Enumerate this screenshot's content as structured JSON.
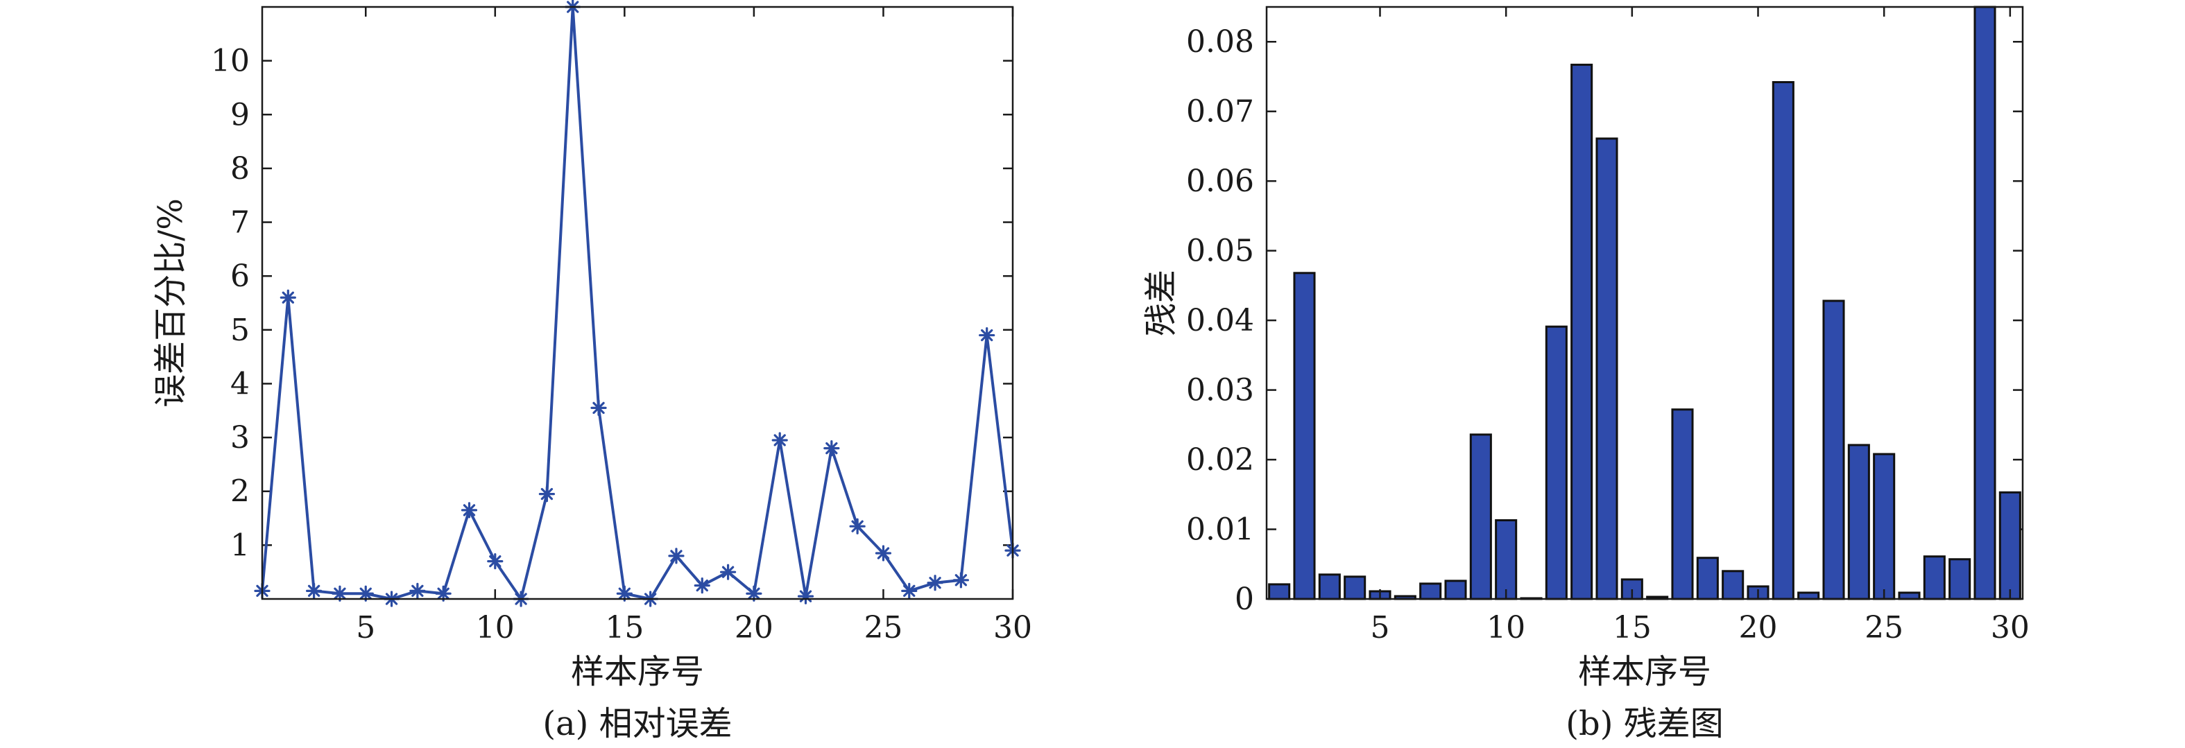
{
  "chart_data": [
    {
      "type": "line",
      "title": "",
      "caption": "(a) 相对误差",
      "xlabel": "样本序号",
      "ylabel": "误差百分比/%",
      "xlim": [
        1,
        30
      ],
      "ylim": [
        0,
        11
      ],
      "xticks": [
        5,
        10,
        15,
        20,
        25,
        30
      ],
      "yticks": [
        1,
        2,
        3,
        4,
        5,
        6,
        7,
        8,
        9,
        10
      ],
      "color": "#2b4ca3",
      "marker": "asterisk",
      "x": [
        1,
        2,
        3,
        4,
        5,
        6,
        7,
        8,
        9,
        10,
        11,
        12,
        13,
        14,
        15,
        16,
        17,
        18,
        19,
        20,
        21,
        22,
        23,
        24,
        25,
        26,
        27,
        28,
        29,
        30
      ],
      "y": [
        0.15,
        5.6,
        0.15,
        0.1,
        0.1,
        0.0,
        0.15,
        0.1,
        1.65,
        0.7,
        0.0,
        1.95,
        11.0,
        3.55,
        0.1,
        0.0,
        0.8,
        0.25,
        0.5,
        0.1,
        2.95,
        0.05,
        2.8,
        1.35,
        0.85,
        0.15,
        0.3,
        0.35,
        4.9,
        0.9
      ]
    },
    {
      "type": "bar",
      "title": "",
      "caption": "(b) 残差图",
      "xlabel": "样本序号",
      "ylabel": "残差",
      "xlim": [
        0.5,
        30.5
      ],
      "ylim": [
        0,
        0.085
      ],
      "xticks": [
        5,
        10,
        15,
        20,
        25,
        30
      ],
      "yticks": [
        "0",
        "0.01",
        "0.02",
        "0.03",
        "0.04",
        "0.05",
        "0.06",
        "0.07",
        "0.08"
      ],
      "color": "#2f4bab",
      "categories": [
        1,
        2,
        3,
        4,
        5,
        6,
        7,
        8,
        9,
        10,
        11,
        12,
        13,
        14,
        15,
        16,
        17,
        18,
        19,
        20,
        21,
        22,
        23,
        24,
        25,
        26,
        27,
        28,
        29,
        30
      ],
      "values": [
        0.0021,
        0.0468,
        0.0035,
        0.0032,
        0.0011,
        0.0004,
        0.0022,
        0.0026,
        0.0236,
        0.0113,
        0.0001,
        0.0391,
        0.0767,
        0.0661,
        0.0028,
        0.0003,
        0.0272,
        0.0059,
        0.004,
        0.0018,
        0.0742,
        0.0009,
        0.0428,
        0.0221,
        0.0208,
        0.0009,
        0.0061,
        0.0057,
        0.085,
        0.0153
      ]
    }
  ]
}
